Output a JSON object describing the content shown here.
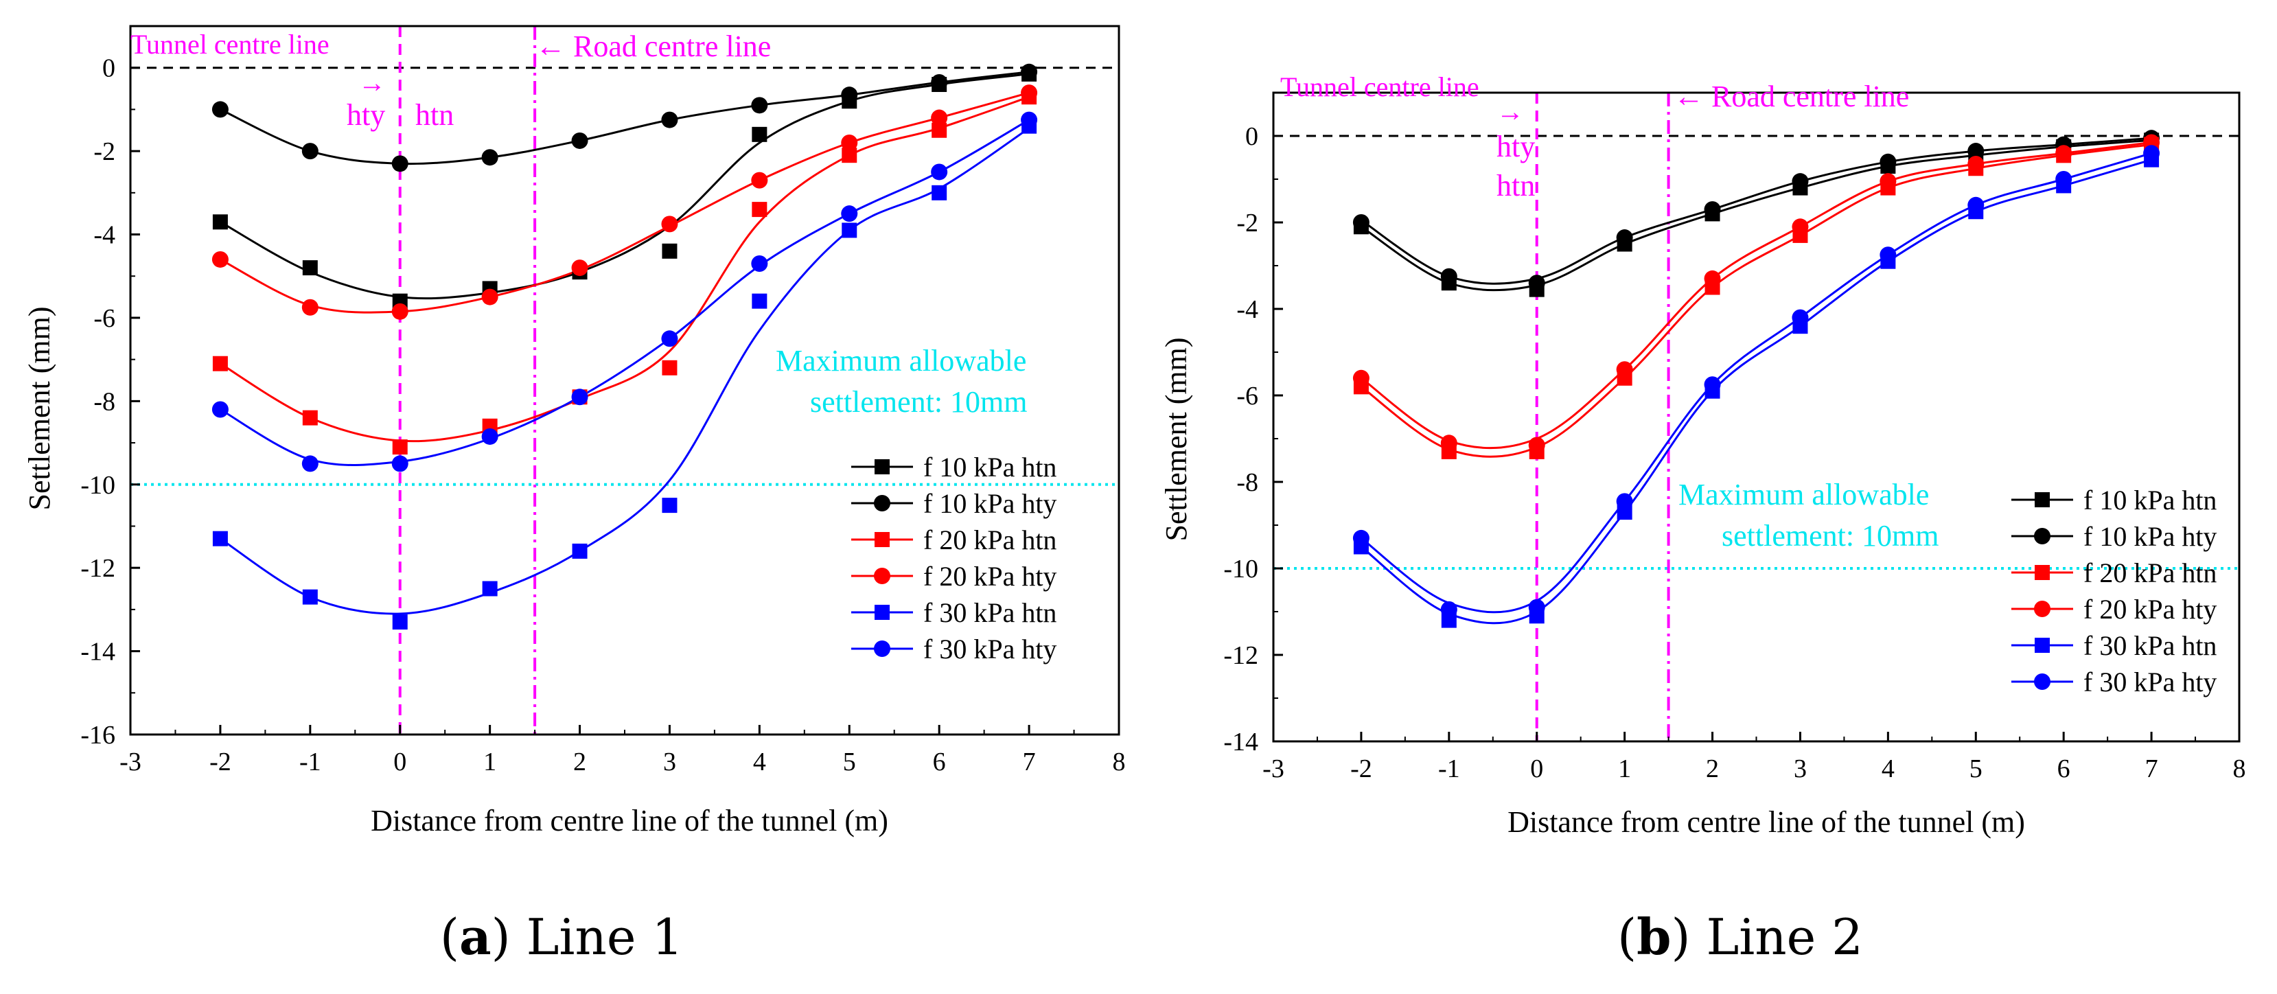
{
  "chart_data": [
    {
      "type": "line",
      "caption_letter": "a",
      "caption_text": " Line 1",
      "xlabel": "Distance from centre line of the tunnel (m)",
      "ylabel": "Settlement (mm)",
      "xlim": [
        -3,
        8
      ],
      "ylim": [
        -16,
        1
      ],
      "xticks": [
        -3,
        -2,
        -1,
        0,
        1,
        2,
        3,
        4,
        5,
        6,
        7,
        8
      ],
      "yticks": [
        0,
        -2,
        -4,
        -6,
        -8,
        -10,
        -12,
        -14,
        -16
      ],
      "annotations": {
        "tunnel_centre_line": "Tunnel centre line",
        "road_centre_line": "← Road centre line",
        "hty": "hty",
        "htn": "htn",
        "arrow": "→",
        "max_settlement_line1": "Maximum allowable",
        "max_settlement_line2": "settlement: 10mm"
      },
      "reference_lines": {
        "tunnel_x": 0,
        "road_x": 1.5,
        "zero_y": 0,
        "limit_y": -10
      },
      "series": [
        {
          "name": "f 10 kPa htn",
          "color": "#000000",
          "marker": "square",
          "x": [
            -2,
            -1,
            0,
            1,
            2,
            3,
            4,
            5,
            6,
            7
          ],
          "points": [
            -3.7,
            -4.8,
            -5.6,
            -5.3,
            -4.9,
            -4.4,
            -1.6,
            -0.8,
            -0.4,
            -0.15
          ],
          "curve": [
            -3.7,
            -4.9,
            -5.5,
            -5.4,
            -4.9,
            -3.8,
            -1.8,
            -0.8,
            -0.4,
            -0.15
          ]
        },
        {
          "name": "f 10 kPa hty",
          "color": "#000000",
          "marker": "circle",
          "x": [
            -2,
            -1,
            0,
            1,
            2,
            3,
            4,
            5,
            6,
            7
          ],
          "points": [
            -1.0,
            -2.0,
            -2.3,
            -2.15,
            -1.75,
            -1.25,
            -0.9,
            -0.65,
            -0.35,
            -0.1
          ],
          "curve": [
            -1.0,
            -2.0,
            -2.3,
            -2.15,
            -1.75,
            -1.25,
            -0.9,
            -0.65,
            -0.35,
            -0.1
          ]
        },
        {
          "name": "f 20 kPa htn",
          "color": "#ff0000",
          "marker": "square",
          "x": [
            -2,
            -1,
            0,
            1,
            2,
            3,
            4,
            5,
            6,
            7
          ],
          "points": [
            -7.1,
            -8.4,
            -9.1,
            -8.6,
            -7.9,
            -7.2,
            -3.4,
            -2.1,
            -1.5,
            -0.7
          ],
          "curve": [
            -7.1,
            -8.4,
            -8.95,
            -8.7,
            -7.95,
            -6.8,
            -3.7,
            -2.1,
            -1.45,
            -0.7
          ]
        },
        {
          "name": "f 20 kPa hty",
          "color": "#ff0000",
          "marker": "circle",
          "x": [
            -2,
            -1,
            0,
            1,
            2,
            3,
            4,
            5,
            6,
            7
          ],
          "points": [
            -4.6,
            -5.75,
            -5.85,
            -5.5,
            -4.8,
            -3.75,
            -2.7,
            -1.8,
            -1.2,
            -0.6
          ],
          "curve": [
            -4.6,
            -5.7,
            -5.85,
            -5.5,
            -4.85,
            -3.8,
            -2.7,
            -1.8,
            -1.2,
            -0.6
          ]
        },
        {
          "name": "f 30 kPa htn",
          "color": "#0000ff",
          "marker": "square",
          "x": [
            -2,
            -1,
            0,
            1,
            2,
            3,
            4,
            5,
            6,
            7
          ],
          "points": [
            -11.3,
            -12.7,
            -13.3,
            -12.5,
            -11.6,
            -10.5,
            -5.6,
            -3.9,
            -3.0,
            -1.4
          ],
          "curve": [
            -11.3,
            -12.7,
            -13.1,
            -12.6,
            -11.6,
            -9.9,
            -6.3,
            -3.9,
            -2.9,
            -1.45
          ]
        },
        {
          "name": "f 30 kPa hty",
          "color": "#0000ff",
          "marker": "circle",
          "x": [
            -2,
            -1,
            0,
            1,
            2,
            3,
            4,
            5,
            6,
            7
          ],
          "points": [
            -8.2,
            -9.5,
            -9.5,
            -8.85,
            -7.9,
            -6.5,
            -4.7,
            -3.5,
            -2.5,
            -1.25
          ],
          "curve": [
            -8.2,
            -9.4,
            -9.45,
            -8.9,
            -7.9,
            -6.5,
            -4.75,
            -3.5,
            -2.5,
            -1.25
          ]
        }
      ]
    },
    {
      "type": "line",
      "caption_letter": "b",
      "caption_text": " Line 2",
      "xlabel": "Distance from centre line of the tunnel (m)",
      "ylabel": "Settlement (mm)",
      "xlim": [
        -3,
        8
      ],
      "ylim": [
        -14,
        1
      ],
      "xticks": [
        -3,
        -2,
        -1,
        0,
        1,
        2,
        3,
        4,
        5,
        6,
        7,
        8
      ],
      "yticks": [
        0,
        -2,
        -4,
        -6,
        -8,
        -10,
        -12,
        -14
      ],
      "annotations": {
        "tunnel_centre_line": "Tunnel centre line",
        "road_centre_line": "← Road centre line",
        "hty": "hty",
        "htn": "htn",
        "arrow": "→",
        "max_settlement_line1": "Maximum allowable",
        "max_settlement_line2": "settlement: 10mm"
      },
      "reference_lines": {
        "tunnel_x": 0,
        "road_x": 1.5,
        "zero_y": 0,
        "limit_y": -10
      },
      "series": [
        {
          "name": "f 10 kPa htn",
          "color": "#000000",
          "marker": "square",
          "x": [
            -2,
            -1,
            0,
            1,
            2,
            3,
            4,
            5,
            6,
            7
          ],
          "points": [
            -2.1,
            -3.4,
            -3.55,
            -2.5,
            -1.8,
            -1.2,
            -0.7,
            -0.45,
            -0.25,
            -0.1
          ],
          "curve": [
            -2.1,
            -3.4,
            -3.45,
            -2.5,
            -1.8,
            -1.2,
            -0.7,
            -0.45,
            -0.25,
            -0.1
          ]
        },
        {
          "name": "f 10 kPa hty",
          "color": "#000000",
          "marker": "circle",
          "x": [
            -2,
            -1,
            0,
            1,
            2,
            3,
            4,
            5,
            6,
            7
          ],
          "points": [
            -2.0,
            -3.25,
            -3.4,
            -2.35,
            -1.7,
            -1.05,
            -0.6,
            -0.35,
            -0.2,
            -0.05
          ],
          "curve": [
            -1.95,
            -3.25,
            -3.3,
            -2.35,
            -1.7,
            -1.05,
            -0.6,
            -0.35,
            -0.2,
            -0.05
          ]
        },
        {
          "name": "f 20 kPa htn",
          "color": "#ff0000",
          "marker": "square",
          "x": [
            -2,
            -1,
            0,
            1,
            2,
            3,
            4,
            5,
            6,
            7
          ],
          "points": [
            -5.8,
            -7.3,
            -7.3,
            -5.6,
            -3.5,
            -2.3,
            -1.2,
            -0.75,
            -0.45,
            -0.2
          ],
          "curve": [
            -5.8,
            -7.25,
            -7.2,
            -5.6,
            -3.5,
            -2.3,
            -1.2,
            -0.75,
            -0.45,
            -0.2
          ]
        },
        {
          "name": "f 20 kPa hty",
          "color": "#ff0000",
          "marker": "circle",
          "x": [
            -2,
            -1,
            0,
            1,
            2,
            3,
            4,
            5,
            6,
            7
          ],
          "points": [
            -5.6,
            -7.1,
            -7.15,
            -5.4,
            -3.3,
            -2.1,
            -1.05,
            -0.65,
            -0.4,
            -0.15
          ],
          "curve": [
            -5.6,
            -7.05,
            -7.0,
            -5.4,
            -3.3,
            -2.1,
            -1.05,
            -0.65,
            -0.4,
            -0.15
          ]
        },
        {
          "name": "f 30 kPa htn",
          "color": "#0000ff",
          "marker": "square",
          "x": [
            -2,
            -1,
            0,
            1,
            2,
            3,
            4,
            5,
            6,
            7
          ],
          "points": [
            -9.5,
            -11.2,
            -11.1,
            -8.7,
            -5.9,
            -4.4,
            -2.9,
            -1.75,
            -1.15,
            -0.55
          ],
          "curve": [
            -9.5,
            -11.05,
            -11.0,
            -8.7,
            -5.9,
            -4.4,
            -2.9,
            -1.75,
            -1.15,
            -0.55
          ]
        },
        {
          "name": "f 30 kPa hty",
          "color": "#0000ff",
          "marker": "circle",
          "x": [
            -2,
            -1,
            0,
            1,
            2,
            3,
            4,
            5,
            6,
            7
          ],
          "points": [
            -9.3,
            -10.95,
            -10.9,
            -8.45,
            -5.75,
            -4.2,
            -2.75,
            -1.6,
            -1.0,
            -0.4
          ],
          "curve": [
            -9.3,
            -10.8,
            -10.75,
            -8.45,
            -5.75,
            -4.2,
            -2.75,
            -1.6,
            -1.0,
            -0.4
          ]
        }
      ]
    }
  ]
}
